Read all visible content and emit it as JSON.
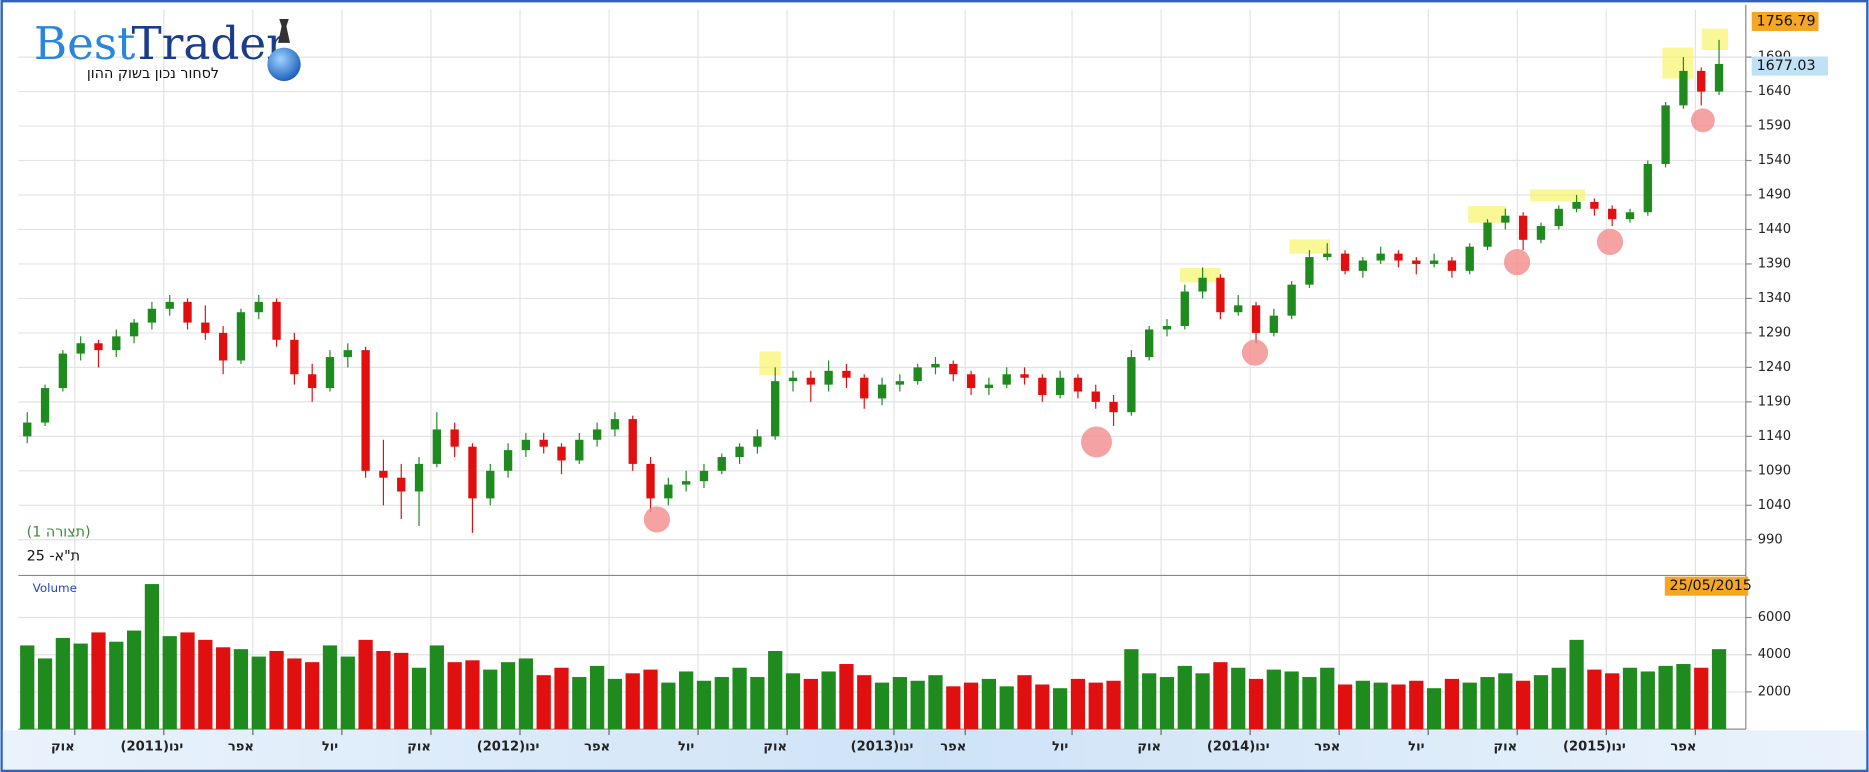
{
  "chart_data": {
    "type": "candlestick",
    "logo": {
      "best": "Best",
      "trader": "Trader",
      "tagline": "לסחור נכון בשוק ההון"
    },
    "panel_label": "(תצורה 1)",
    "index_name": "ת\"א- 25",
    "volume_label": "Volume",
    "price_marker_high": 1756.79,
    "price_marker_last": 1677.03,
    "date_marker": "25/05/2015",
    "up_color": "#1f8b1f",
    "down_color": "#e01010",
    "grid": true,
    "categories": [
      null,
      null,
      "אוק",
      null,
      null,
      null,
      null,
      "(2011)ינו",
      null,
      null,
      null,
      null,
      "אפר",
      null,
      null,
      null,
      null,
      "יול",
      null,
      null,
      null,
      null,
      "אוק",
      null,
      null,
      null,
      null,
      "(2012)ינו",
      null,
      null,
      null,
      null,
      "אפר",
      null,
      null,
      null,
      null,
      "יול",
      null,
      null,
      null,
      null,
      "אוק",
      null,
      null,
      null,
      null,
      null,
      "(2013)ינו",
      null,
      null,
      null,
      "אפר",
      null,
      null,
      null,
      null,
      null,
      "יול",
      null,
      null,
      null,
      null,
      "אוק",
      null,
      null,
      null,
      null,
      "(2014)ינו",
      null,
      null,
      null,
      null,
      "אפר",
      null,
      null,
      null,
      null,
      "יול",
      null,
      null,
      null,
      null,
      "אוק",
      null,
      null,
      null,
      null,
      "(2015)ינו",
      null,
      null,
      null,
      null,
      "אפר",
      null,
      null
    ],
    "ohlc": [
      [
        1140,
        1175,
        1130,
        1160
      ],
      [
        1160,
        1215,
        1155,
        1210
      ],
      [
        1210,
        1265,
        1205,
        1260
      ],
      [
        1260,
        1285,
        1250,
        1275
      ],
      [
        1275,
        1280,
        1240,
        1265
      ],
      [
        1265,
        1295,
        1255,
        1285
      ],
      [
        1285,
        1310,
        1275,
        1305
      ],
      [
        1305,
        1335,
        1295,
        1325
      ],
      [
        1325,
        1345,
        1315,
        1335
      ],
      [
        1335,
        1340,
        1295,
        1305
      ],
      [
        1305,
        1330,
        1280,
        1290
      ],
      [
        1290,
        1300,
        1230,
        1250
      ],
      [
        1250,
        1325,
        1245,
        1320
      ],
      [
        1320,
        1345,
        1310,
        1335
      ],
      [
        1335,
        1340,
        1270,
        1280
      ],
      [
        1280,
        1290,
        1215,
        1230
      ],
      [
        1230,
        1245,
        1190,
        1210
      ],
      [
        1210,
        1265,
        1205,
        1255
      ],
      [
        1255,
        1275,
        1240,
        1265
      ],
      [
        1265,
        1270,
        1080,
        1090
      ],
      [
        1090,
        1135,
        1040,
        1080
      ],
      [
        1080,
        1100,
        1020,
        1060
      ],
      [
        1060,
        1110,
        1010,
        1100
      ],
      [
        1100,
        1175,
        1095,
        1150
      ],
      [
        1150,
        1160,
        1110,
        1125
      ],
      [
        1125,
        1130,
        1000,
        1050
      ],
      [
        1050,
        1100,
        1040,
        1090
      ],
      [
        1090,
        1130,
        1080,
        1120
      ],
      [
        1120,
        1145,
        1110,
        1135
      ],
      [
        1135,
        1145,
        1115,
        1125
      ],
      [
        1125,
        1130,
        1085,
        1105
      ],
      [
        1105,
        1145,
        1100,
        1135
      ],
      [
        1135,
        1160,
        1125,
        1150
      ],
      [
        1150,
        1175,
        1140,
        1165
      ],
      [
        1165,
        1170,
        1090,
        1100
      ],
      [
        1100,
        1110,
        1030,
        1050
      ],
      [
        1050,
        1080,
        1040,
        1070
      ],
      [
        1070,
        1090,
        1060,
        1075
      ],
      [
        1075,
        1100,
        1065,
        1090
      ],
      [
        1090,
        1115,
        1085,
        1110
      ],
      [
        1110,
        1130,
        1100,
        1125
      ],
      [
        1125,
        1150,
        1115,
        1140
      ],
      [
        1140,
        1240,
        1135,
        1220
      ],
      [
        1220,
        1235,
        1205,
        1225
      ],
      [
        1225,
        1235,
        1190,
        1215
      ],
      [
        1215,
        1250,
        1205,
        1235
      ],
      [
        1235,
        1245,
        1210,
        1225
      ],
      [
        1225,
        1230,
        1180,
        1195
      ],
      [
        1195,
        1225,
        1185,
        1215
      ],
      [
        1215,
        1230,
        1205,
        1220
      ],
      [
        1220,
        1245,
        1215,
        1240
      ],
      [
        1240,
        1255,
        1230,
        1245
      ],
      [
        1245,
        1250,
        1220,
        1230
      ],
      [
        1230,
        1235,
        1200,
        1210
      ],
      [
        1210,
        1225,
        1200,
        1215
      ],
      [
        1215,
        1240,
        1210,
        1230
      ],
      [
        1230,
        1240,
        1215,
        1225
      ],
      [
        1225,
        1230,
        1190,
        1200
      ],
      [
        1200,
        1235,
        1195,
        1225
      ],
      [
        1225,
        1230,
        1195,
        1205
      ],
      [
        1205,
        1215,
        1180,
        1190
      ],
      [
        1190,
        1200,
        1155,
        1175
      ],
      [
        1175,
        1265,
        1170,
        1255
      ],
      [
        1255,
        1300,
        1250,
        1295
      ],
      [
        1295,
        1310,
        1285,
        1300
      ],
      [
        1300,
        1360,
        1295,
        1350
      ],
      [
        1350,
        1385,
        1340,
        1370
      ],
      [
        1370,
        1375,
        1310,
        1320
      ],
      [
        1320,
        1345,
        1315,
        1330
      ],
      [
        1330,
        1335,
        1275,
        1290
      ],
      [
        1290,
        1325,
        1285,
        1315
      ],
      [
        1315,
        1365,
        1310,
        1360
      ],
      [
        1360,
        1410,
        1355,
        1400
      ],
      [
        1400,
        1420,
        1395,
        1405
      ],
      [
        1405,
        1410,
        1375,
        1380
      ],
      [
        1380,
        1400,
        1370,
        1395
      ],
      [
        1395,
        1415,
        1390,
        1405
      ],
      [
        1405,
        1410,
        1385,
        1395
      ],
      [
        1395,
        1400,
        1375,
        1390
      ],
      [
        1390,
        1405,
        1385,
        1395
      ],
      [
        1395,
        1400,
        1370,
        1380
      ],
      [
        1380,
        1420,
        1375,
        1415
      ],
      [
        1415,
        1455,
        1410,
        1450
      ],
      [
        1450,
        1470,
        1440,
        1460
      ],
      [
        1460,
        1465,
        1410,
        1425
      ],
      [
        1425,
        1450,
        1420,
        1445
      ],
      [
        1445,
        1475,
        1440,
        1470
      ],
      [
        1470,
        1490,
        1465,
        1480
      ],
      [
        1480,
        1485,
        1460,
        1470
      ],
      [
        1470,
        1475,
        1445,
        1455
      ],
      [
        1455,
        1470,
        1450,
        1465
      ],
      [
        1465,
        1540,
        1460,
        1535
      ],
      [
        1535,
        1625,
        1530,
        1620
      ],
      [
        1620,
        1690,
        1615,
        1670
      ],
      [
        1670,
        1675,
        1620,
        1640
      ],
      [
        1640,
        1715,
        1635,
        1680
      ]
    ],
    "volume": [
      4500,
      3800,
      4900,
      4600,
      5200,
      4700,
      5300,
      7800,
      5000,
      5200,
      4800,
      4400,
      4300,
      3900,
      4200,
      3800,
      3600,
      4500,
      3900,
      4800,
      4200,
      4100,
      3300,
      4500,
      3600,
      3700,
      3200,
      3600,
      3800,
      2900,
      3300,
      2800,
      3400,
      2700,
      3000,
      3200,
      2500,
      3100,
      2600,
      2800,
      3300,
      2800,
      4200,
      3000,
      2700,
      3100,
      3500,
      2900,
      2500,
      2800,
      2600,
      2900,
      2300,
      2500,
      2700,
      2300,
      2900,
      2400,
      2200,
      2700,
      2500,
      2600,
      4300,
      3000,
      2800,
      3400,
      3000,
      3600,
      3300,
      2700,
      3200,
      3100,
      2800,
      3300,
      2400,
      2600,
      2500,
      2400,
      2600,
      2200,
      2700,
      2500,
      2800,
      3000,
      2600,
      2900,
      3300,
      4800,
      3200,
      3000,
      3300,
      3100,
      3400,
      3500,
      3300,
      4300
    ],
    "ylim": [
      940,
      1759
    ],
    "yticks": [
      990,
      1040,
      1090,
      1140,
      1190,
      1240,
      1290,
      1340,
      1390,
      1440,
      1490,
      1540,
      1590,
      1640,
      1690
    ],
    "volume_ylim": [
      0,
      8200
    ],
    "volume_yticks": [
      2000,
      4000,
      6000
    ]
  }
}
